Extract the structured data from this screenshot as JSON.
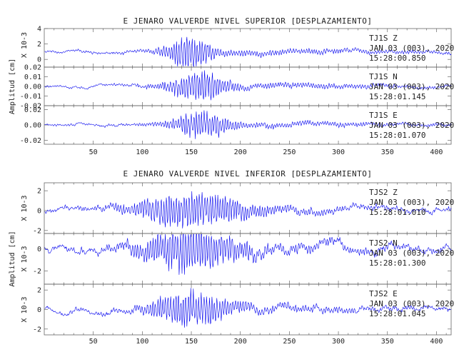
{
  "chart_data": [
    {
      "type": "line",
      "title": "E JENARO VALVERDE NIVEL SUPERIOR [DESPLAZAMIENTO]",
      "ylabel": "Amplitud [cm]",
      "xlim": [
        0,
        415
      ],
      "xticks": [
        50,
        100,
        150,
        200,
        250,
        300,
        350,
        400
      ],
      "panels": [
        {
          "station": "TJ1S   Z",
          "date": "JAN 03 (003), 2020",
          "time": "15:28:00.850",
          "scale_label": "X 10-3",
          "ylim": [
            -1,
            4
          ],
          "yticks": [
            0,
            2,
            4
          ],
          "ytick_labels": [
            "0",
            "2",
            "4"
          ],
          "color": "#0000ee",
          "series": {
            "baseline": 1,
            "peak": 2.6,
            "envelope_peak_x": 148,
            "envelope_width": 22,
            "onset_x": 95
          }
        },
        {
          "station": "TJ1S   N",
          "date": "JAN 03 (003), 2020",
          "time": "15:28:01.145",
          "scale_label": "",
          "ylim": [
            -0.02,
            0.02
          ],
          "yticks": [
            -0.02,
            -0.01,
            0,
            0.01,
            0.02
          ],
          "ytick_labels": [
            "-0.02",
            "-0.01",
            "0.00",
            "0.01",
            "0.02"
          ],
          "color": "#0000ee",
          "series": {
            "baseline": 0,
            "peak": 0.019,
            "envelope_peak_x": 158,
            "envelope_width": 28,
            "onset_x": 95
          }
        },
        {
          "station": "TJ1S   E",
          "date": "JAN 03 (003), 2020",
          "time": "15:28:01.070",
          "scale_label": "",
          "ylim": [
            -0.025,
            0.025
          ],
          "yticks": [
            -0.02,
            0,
            0.02
          ],
          "ytick_labels": [
            "-0.02",
            "0.00",
            "0.02"
          ],
          "color": "#0000ee",
          "series": {
            "baseline": 0,
            "peak": 0.023,
            "envelope_peak_x": 160,
            "envelope_width": 26,
            "onset_x": 95
          }
        }
      ]
    },
    {
      "type": "line",
      "title": "E JENARO VALVERDE NIVEL INFERIOR [DESPLAZAMIENTO]",
      "ylabel": "Amplitud [cm]",
      "xlim": [
        0,
        415
      ],
      "xticks": [
        50,
        100,
        150,
        200,
        250,
        300,
        350,
        400
      ],
      "panels": [
        {
          "station": "TJS2   Z",
          "date": "JAN 03 (003), 2020",
          "time": "15:28:01.010",
          "scale_label": "X 10-3",
          "ylim": [
            -2.3,
            2.8
          ],
          "yticks": [
            -2,
            0,
            2
          ],
          "ytick_labels": [
            "-2",
            "0",
            "2"
          ],
          "color": "#0000ee",
          "series": {
            "baseline": 0,
            "peak": 2.2,
            "envelope_peak_x": 150,
            "envelope_width": 55,
            "onset_x": 20
          }
        },
        {
          "station": "TJS2   N",
          "date": "JAN 03 (003), 2020",
          "time": "15:28:01.300",
          "scale_label": "X 10-3",
          "ylim": [
            -3.2,
            1.4
          ],
          "yticks": [
            -2,
            0
          ],
          "ytick_labels": [
            "-2",
            "0"
          ],
          "color": "#0000ee",
          "series": {
            "baseline": 0,
            "peak": 2.6,
            "envelope_peak_x": 148,
            "envelope_width": 45,
            "onset_x": 20
          }
        },
        {
          "station": "TJS2   E",
          "date": "JAN 03 (003), 2020",
          "time": "15:28:01.045",
          "scale_label": "X 10-3",
          "ylim": [
            -2.6,
            2.6
          ],
          "yticks": [
            -2,
            0,
            2
          ],
          "ytick_labels": [
            "-2",
            "0",
            "2"
          ],
          "color": "#0000ee",
          "series": {
            "baseline": 0,
            "peak": 2.2,
            "envelope_peak_x": 150,
            "envelope_width": 40,
            "onset_x": 20
          }
        }
      ]
    }
  ]
}
